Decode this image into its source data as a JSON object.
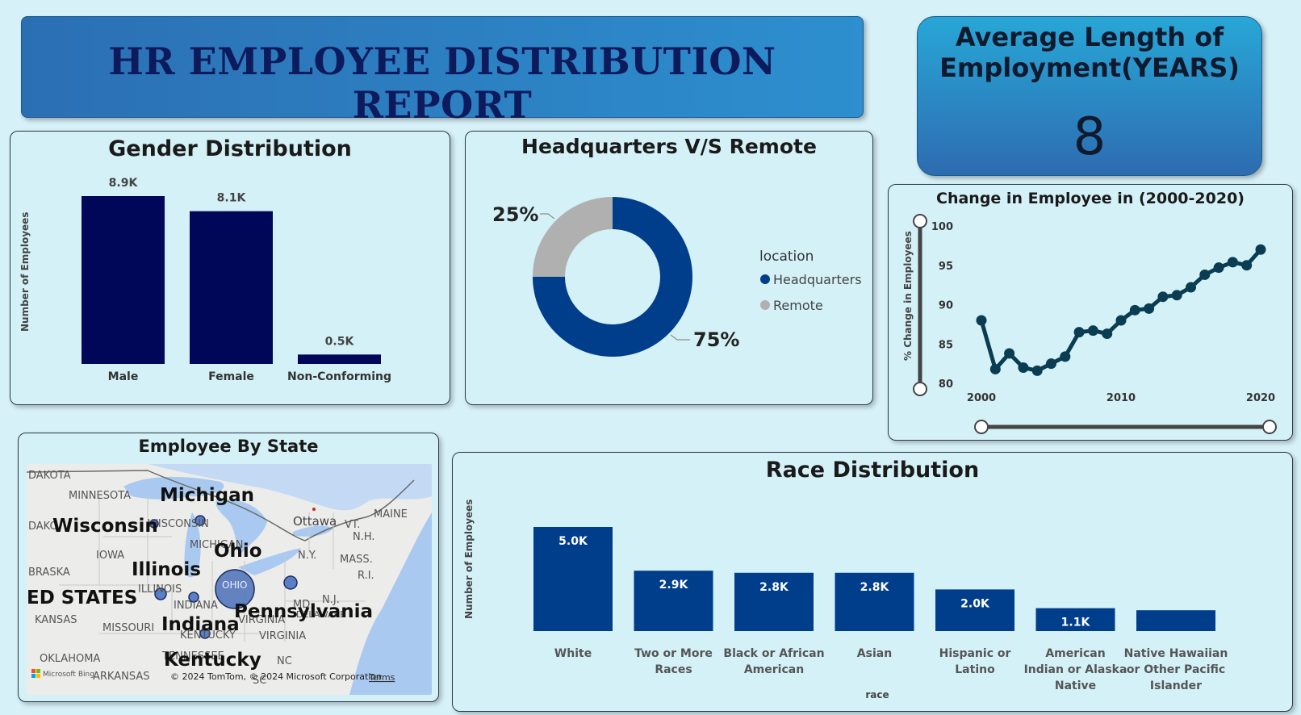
{
  "header": {
    "title": "HR EMPLOYEE DISTRIBUTION REPORT"
  },
  "kpi": {
    "title": "Average Length of Employment(YEARS)",
    "value": "8"
  },
  "gender": {
    "title": "Gender Distribution",
    "ylabel": "Number of Employees"
  },
  "hq": {
    "title": "Headquarters V/S Remote",
    "legend_title": "location",
    "legend": [
      {
        "label": "Headquarters",
        "color": "#003e8c"
      },
      {
        "label": "Remote",
        "color": "#b0b0b0"
      }
    ]
  },
  "trend": {
    "title": "Change in Employee in (2000-2020)",
    "ylabel": "% Change in Employees"
  },
  "map": {
    "title": "Employee By State",
    "big_labels": [
      "Michigan",
      "Wisconsin",
      "Ohio",
      "Illinois",
      "ED STATES",
      "Indiana",
      "Pennsylvania",
      "Kentucky"
    ],
    "small_labels": [
      "DAKOTA",
      "MINNESOTA",
      "DAKO",
      "WISCONSIN",
      "MICHIGAN",
      "IOWA",
      "BRASKA",
      "ILLINOIS",
      "OHIO",
      "INDIANA",
      "KANSAS",
      "MISSOURI",
      "KENTUCKY",
      "VIRGINIA",
      "VIRGINIA",
      "OKLAHOMA",
      "ARKANSAS",
      "TENNESSEE",
      "NC",
      "SC",
      "Ottawa",
      "VT.",
      "MAINE",
      "N.H.",
      "N.Y.",
      "MASS.",
      "R.I.",
      "N.J.",
      "MD",
      "DELAWARE"
    ],
    "attribution": "© 2024 TomTom, © 2024 Microsoft Corporation",
    "terms": "Terms",
    "bing": "Microsoft Bing"
  },
  "race": {
    "title": "Race Distribution",
    "ylabel": "Number of Employees",
    "xlabel": "race"
  },
  "colors": {
    "navy": "#010758",
    "blue": "#003e8c",
    "grey": "#b0b0b0"
  },
  "chart_data": [
    {
      "type": "bar",
      "title": "Gender Distribution",
      "ylabel": "Number of Employees",
      "categories": [
        "Male",
        "Female",
        "Non-Conforming"
      ],
      "values": [
        8900,
        8100,
        500
      ],
      "labels": [
        "8.9K",
        "8.1K",
        "0.5K"
      ],
      "ylim": [
        0,
        8900
      ]
    },
    {
      "type": "pie",
      "title": "Headquarters V/S Remote",
      "categories": [
        "Headquarters",
        "Remote"
      ],
      "values": [
        75,
        25
      ],
      "labels": [
        "75%",
        "25%"
      ]
    },
    {
      "type": "line",
      "title": "Change in Employee in (2000-2020)",
      "ylabel": "% Change in Employees",
      "x": [
        2000,
        2001,
        2002,
        2003,
        2004,
        2005,
        2006,
        2007,
        2008,
        2009,
        2010,
        2011,
        2012,
        2013,
        2014,
        2015,
        2016,
        2017,
        2018,
        2019,
        2020
      ],
      "y": [
        88,
        81.8,
        83.8,
        82,
        81.6,
        82.5,
        83.4,
        86.5,
        86.7,
        86.3,
        88,
        89.3,
        89.5,
        91,
        91.2,
        92.2,
        93.8,
        94.7,
        95.4,
        95,
        97
      ],
      "ylim": [
        80,
        100
      ],
      "yticks": [
        80,
        85,
        90,
        95,
        100
      ],
      "xticks": [
        2000,
        2010,
        2020
      ]
    },
    {
      "type": "bar",
      "title": "Race Distribution",
      "ylabel": "Number of Employees",
      "xlabel": "race",
      "categories": [
        "White",
        "Two or More Races",
        "Black or African American",
        "Asian",
        "Hispanic or Latino",
        "American Indian or Alaska Native",
        "Native Hawaiian or Other Pacific Islander"
      ],
      "category_lines": [
        [
          "White"
        ],
        [
          "Two or More",
          "Races"
        ],
        [
          "Black or African",
          "American"
        ],
        [
          "Asian"
        ],
        [
          "Hispanic or",
          "Latino"
        ],
        [
          "American",
          "Indian or Alaska",
          "Native"
        ],
        [
          "Native Hawaiian",
          "or Other Pacific",
          "Islander"
        ]
      ],
      "values": [
        5000,
        2900,
        2800,
        2800,
        2000,
        1100,
        1000
      ],
      "labels": [
        "5.0K",
        "2.9K",
        "2.8K",
        "2.8K",
        "2.0K",
        "1.1K",
        ""
      ],
      "ylim": [
        0,
        5000
      ]
    }
  ]
}
